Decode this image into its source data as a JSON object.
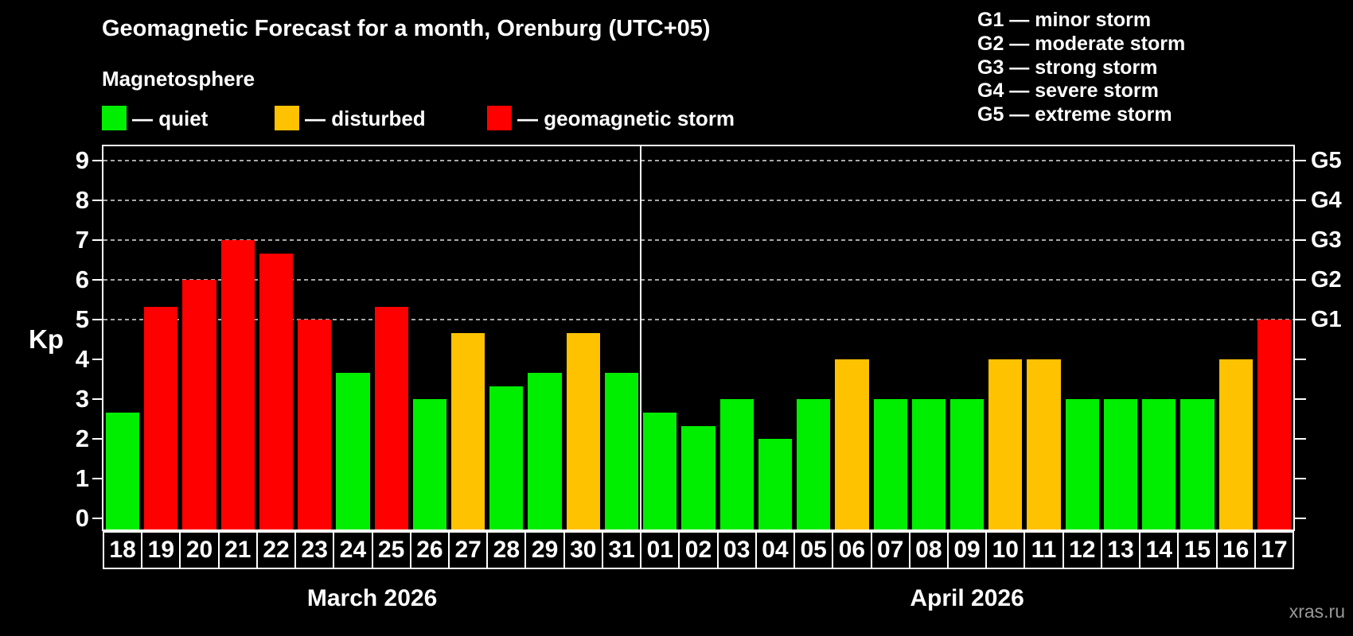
{
  "header": {
    "title": "Geomagnetic Forecast for a month, Orenburg (UTC+05)",
    "subtitle": "Magnetosphere"
  },
  "legend": {
    "items": [
      {
        "status": "quiet",
        "label": "— quiet"
      },
      {
        "status": "disturbed",
        "label": "— disturbed"
      },
      {
        "status": "storm",
        "label": "— geomagnetic storm"
      }
    ]
  },
  "g_legend": [
    "G1 — minor storm",
    "G2 — moderate storm",
    "G3 — strong storm",
    "G4 — severe storm",
    "G5 — extreme storm"
  ],
  "watermark": "xras.ru",
  "colors": {
    "quiet": "#00ee00",
    "disturbed": "#ffc200",
    "storm": "#ff0000",
    "grid": "#a8a8a8",
    "axis": "#ffffff",
    "background": "#000000",
    "watermark": "#999999"
  },
  "chart_data": {
    "type": "bar",
    "ylabel": "Kp",
    "ylim": [
      0,
      9.4
    ],
    "yticks": [
      0,
      1,
      2,
      3,
      4,
      5,
      6,
      7,
      8,
      9
    ],
    "gridlines_at": [
      5,
      6,
      7,
      8,
      9
    ],
    "right_axis": [
      {
        "kp": 5,
        "label": "G1"
      },
      {
        "kp": 6,
        "label": "G2"
      },
      {
        "kp": 7,
        "label": "G3"
      },
      {
        "kp": 8,
        "label": "G4"
      },
      {
        "kp": 9,
        "label": "G5"
      }
    ],
    "months": [
      {
        "label": "March 2026",
        "days": 14
      },
      {
        "label": "April 2026",
        "days": 17
      }
    ],
    "days": [
      {
        "day": "18",
        "kp": 2.67,
        "status": "quiet"
      },
      {
        "day": "19",
        "kp": 5.33,
        "status": "storm"
      },
      {
        "day": "20",
        "kp": 6.0,
        "status": "storm"
      },
      {
        "day": "21",
        "kp": 7.0,
        "status": "storm"
      },
      {
        "day": "22",
        "kp": 6.67,
        "status": "storm"
      },
      {
        "day": "23",
        "kp": 5.0,
        "status": "storm"
      },
      {
        "day": "24",
        "kp": 3.67,
        "status": "quiet"
      },
      {
        "day": "25",
        "kp": 5.33,
        "status": "storm"
      },
      {
        "day": "26",
        "kp": 3.0,
        "status": "quiet"
      },
      {
        "day": "27",
        "kp": 4.67,
        "status": "disturbed"
      },
      {
        "day": "28",
        "kp": 3.33,
        "status": "quiet"
      },
      {
        "day": "29",
        "kp": 3.67,
        "status": "quiet"
      },
      {
        "day": "30",
        "kp": 4.67,
        "status": "disturbed"
      },
      {
        "day": "31",
        "kp": 3.67,
        "status": "quiet"
      },
      {
        "day": "01",
        "kp": 2.67,
        "status": "quiet"
      },
      {
        "day": "02",
        "kp": 2.33,
        "status": "quiet"
      },
      {
        "day": "03",
        "kp": 3.0,
        "status": "quiet"
      },
      {
        "day": "04",
        "kp": 2.0,
        "status": "quiet"
      },
      {
        "day": "05",
        "kp": 3.0,
        "status": "quiet"
      },
      {
        "day": "06",
        "kp": 4.0,
        "status": "disturbed"
      },
      {
        "day": "07",
        "kp": 3.0,
        "status": "quiet"
      },
      {
        "day": "08",
        "kp": 3.0,
        "status": "quiet"
      },
      {
        "day": "09",
        "kp": 3.0,
        "status": "quiet"
      },
      {
        "day": "10",
        "kp": 4.0,
        "status": "disturbed"
      },
      {
        "day": "11",
        "kp": 4.0,
        "status": "disturbed"
      },
      {
        "day": "12",
        "kp": 3.0,
        "status": "quiet"
      },
      {
        "day": "13",
        "kp": 3.0,
        "status": "quiet"
      },
      {
        "day": "14",
        "kp": 3.0,
        "status": "quiet"
      },
      {
        "day": "15",
        "kp": 3.0,
        "status": "quiet"
      },
      {
        "day": "16",
        "kp": 4.0,
        "status": "disturbed"
      },
      {
        "day": "17",
        "kp": 5.0,
        "status": "storm"
      }
    ]
  }
}
